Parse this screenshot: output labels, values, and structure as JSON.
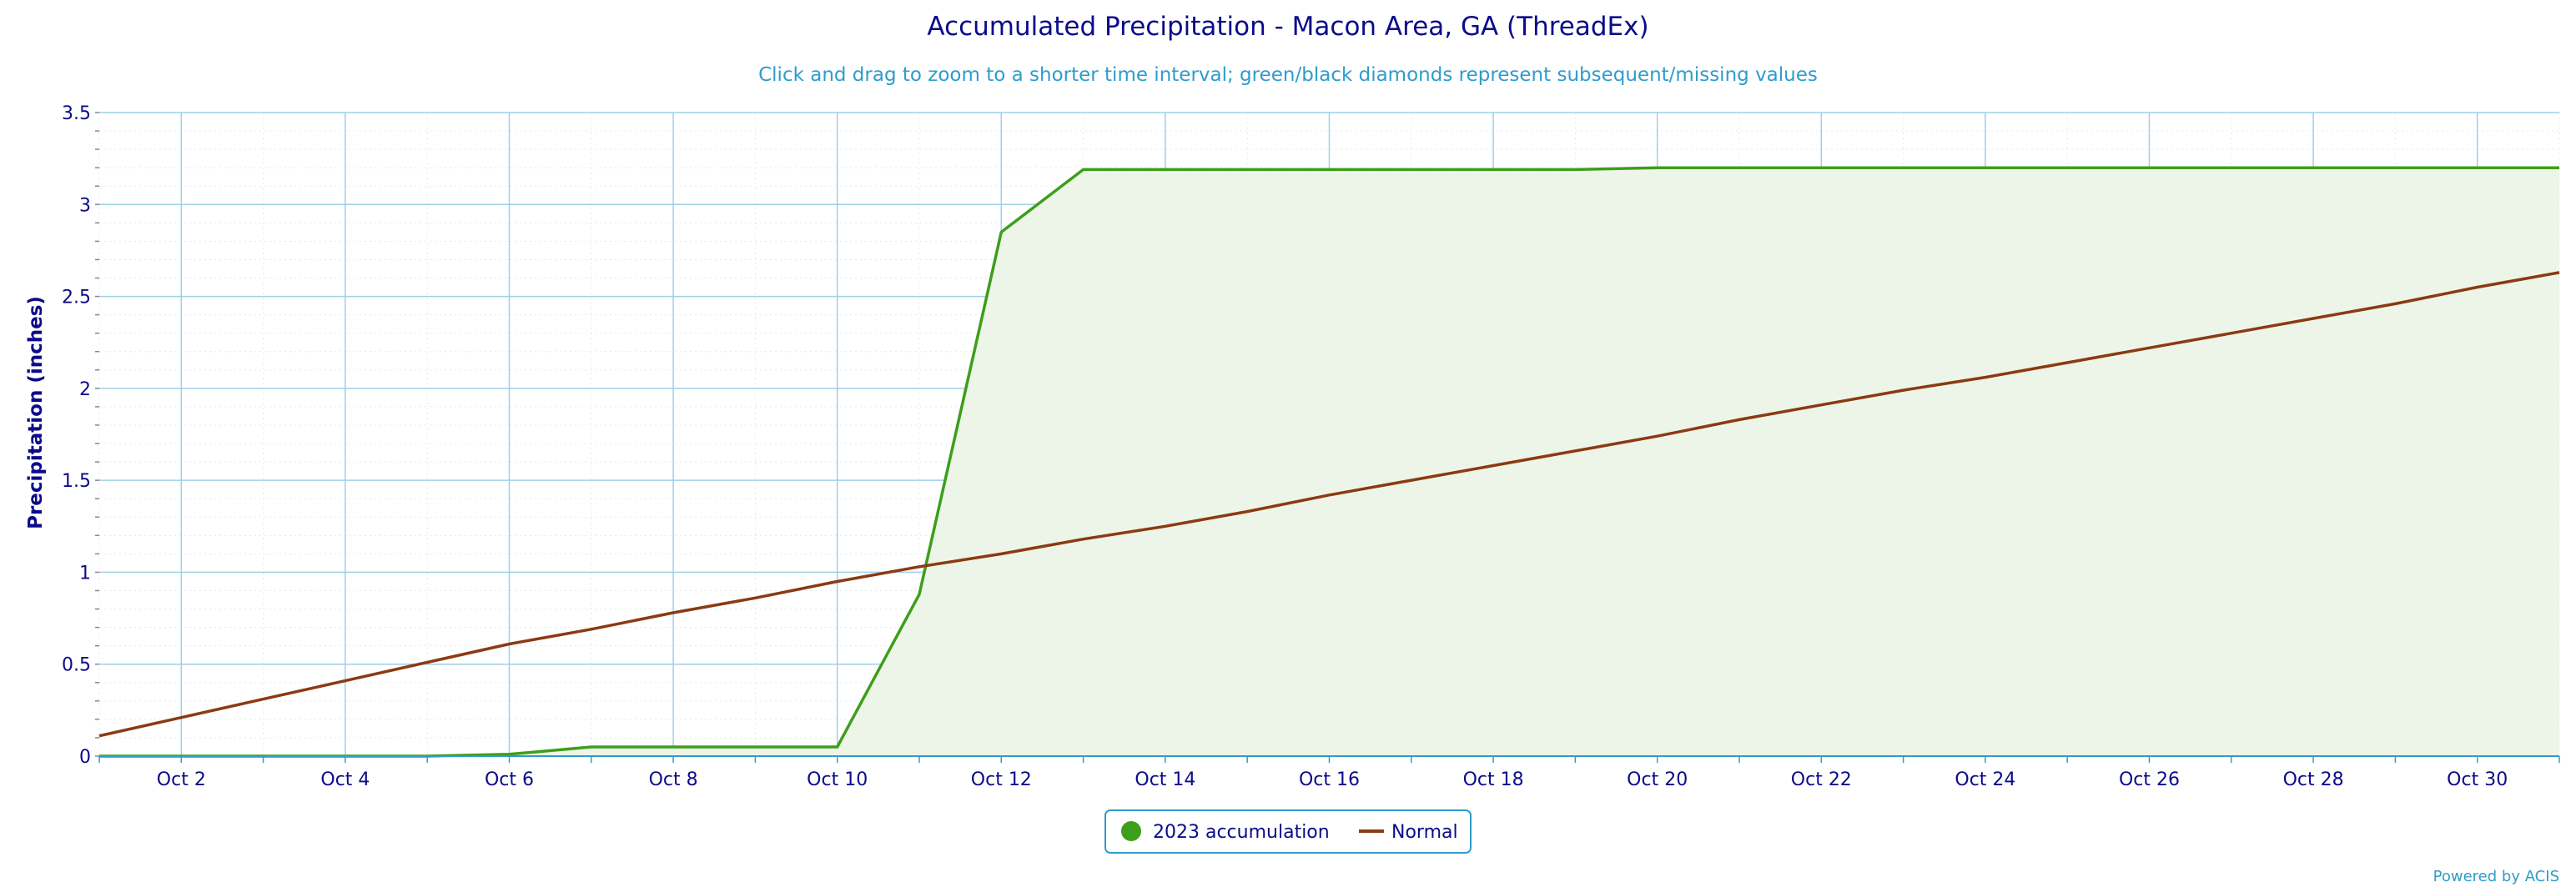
{
  "chart_data": {
    "type": "area",
    "title": "Accumulated Precipitation - Macon Area, GA (ThreadEx)",
    "subtitle": "Click and drag to zoom to a shorter time interval; green/black diamonds represent subsequent/missing values",
    "xlabel": "",
    "ylabel": "Precipitation (inches)",
    "credit": "Powered by ACIS",
    "x": [
      "Oct 1",
      "Oct 2",
      "Oct 3",
      "Oct 4",
      "Oct 5",
      "Oct 6",
      "Oct 7",
      "Oct 8",
      "Oct 9",
      "Oct 10",
      "Oct 11",
      "Oct 12",
      "Oct 13",
      "Oct 14",
      "Oct 15",
      "Oct 16",
      "Oct 17",
      "Oct 18",
      "Oct 19",
      "Oct 20",
      "Oct 21",
      "Oct 22",
      "Oct 23",
      "Oct 24",
      "Oct 25",
      "Oct 26",
      "Oct 27",
      "Oct 28",
      "Oct 29",
      "Oct 30",
      "Oct 31"
    ],
    "x_tick_labels": [
      "Oct 2",
      "Oct 4",
      "Oct 6",
      "Oct 8",
      "Oct 10",
      "Oct 12",
      "Oct 14",
      "Oct 16",
      "Oct 18",
      "Oct 20",
      "Oct 22",
      "Oct 24",
      "Oct 26",
      "Oct 28",
      "Oct 30"
    ],
    "ylim": [
      0,
      3.5
    ],
    "y_tick_labels": [
      "0",
      "0.5",
      "1",
      "1.5",
      "2",
      "2.5",
      "3",
      "3.5"
    ],
    "grid": true,
    "legend_position": "bottom-center",
    "series": [
      {
        "name": "2023 accumulation",
        "color": "#3d9e1c",
        "fill": "#edf5e8",
        "values": [
          0.0,
          0.0,
          0.0,
          0.0,
          0.0,
          0.01,
          0.05,
          0.05,
          0.05,
          0.05,
          0.88,
          2.85,
          3.19,
          3.19,
          3.19,
          3.19,
          3.19,
          3.19,
          3.19,
          3.2,
          3.2,
          3.2,
          3.2,
          3.2,
          3.2,
          3.2,
          3.2,
          3.2,
          3.2,
          3.2,
          3.2
        ]
      },
      {
        "name": "Normal",
        "color": "#8b3a12",
        "values": [
          0.11,
          0.21,
          0.31,
          0.41,
          0.51,
          0.61,
          0.69,
          0.78,
          0.86,
          0.95,
          1.03,
          1.1,
          1.18,
          1.25,
          1.33,
          1.42,
          1.5,
          1.58,
          1.66,
          1.74,
          1.83,
          1.91,
          1.99,
          2.06,
          2.14,
          2.22,
          2.3,
          2.38,
          2.46,
          2.55,
          2.63
        ]
      }
    ]
  }
}
